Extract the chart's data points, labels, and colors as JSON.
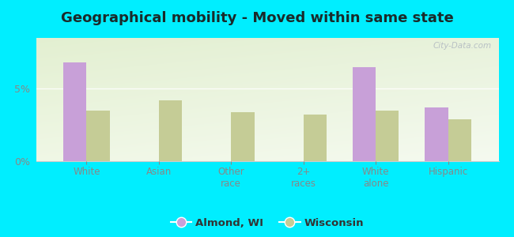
{
  "title": "Geographical mobility - Moved within same state",
  "categories": [
    "White",
    "Asian",
    "Other\nrace",
    "2+\nraces",
    "White\nalone",
    "Hispanic"
  ],
  "almond_values": [
    6.8,
    0,
    0,
    0,
    6.5,
    3.7
  ],
  "wisconsin_values": [
    3.5,
    4.2,
    3.4,
    3.2,
    3.5,
    2.9
  ],
  "almond_color": "#c8a0d8",
  "wisconsin_color": "#c5cc96",
  "outer_bg": "#00eeff",
  "ylim": [
    0,
    8.5
  ],
  "yticks": [
    0,
    5
  ],
  "ytick_labels": [
    "0%",
    "5%"
  ],
  "bar_width": 0.32,
  "legend_labels": [
    "Almond, WI",
    "Wisconsin"
  ],
  "title_fontsize": 13,
  "title_color": "#1a2a2a",
  "watermark": "City-Data.com",
  "axis_color": "#888888",
  "tick_color": "#888888"
}
